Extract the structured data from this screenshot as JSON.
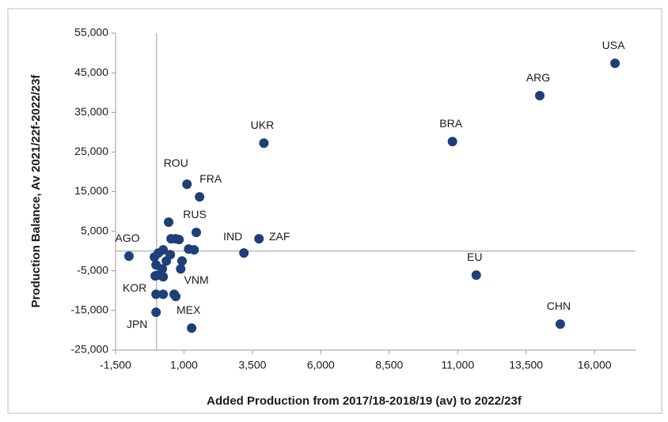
{
  "chart_data": {
    "type": "scatter",
    "x_label": "Added Production from 2017/18-2018/19 (av) to 2022/23f",
    "y_label": "Production Balance, Av 2021/22f-2022/23f",
    "xlim": [
      -1500,
      17500
    ],
    "ylim": [
      -25000,
      55000
    ],
    "xticks": [
      {
        "value": -1500,
        "label": "-1,500"
      },
      {
        "value": 1000,
        "label": "1,000"
      },
      {
        "value": 3500,
        "label": "3,500"
      },
      {
        "value": 6000,
        "label": "6,000"
      },
      {
        "value": 8500,
        "label": "8,500"
      },
      {
        "value": 11000,
        "label": "11,000"
      },
      {
        "value": 13500,
        "label": "13,500"
      },
      {
        "value": 16000,
        "label": "16,000"
      }
    ],
    "yticks": [
      {
        "value": 55000,
        "label": "55,000"
      },
      {
        "value": 45000,
        "label": "45,000"
      },
      {
        "value": 35000,
        "label": "35,000"
      },
      {
        "value": 25000,
        "label": "25,000"
      },
      {
        "value": 15000,
        "label": "15,000"
      },
      {
        "value": 5000,
        "label": "5,000"
      },
      {
        "value": -5000,
        "label": "-5,000"
      },
      {
        "value": -15000,
        "label": "-15,000"
      },
      {
        "value": -25000,
        "label": "-25,000"
      }
    ],
    "color": "#1f3f7a",
    "labels": [
      "USA",
      "ARG",
      "BRA",
      "UKR",
      "EU",
      "CHN",
      "ROU",
      "FRA",
      "RUS",
      "IND",
      "ZAF",
      "AGO",
      "KOR",
      "VNM",
      "JPN",
      "MEX",
      null,
      null,
      null,
      null,
      null,
      null,
      null,
      null,
      null,
      null,
      null,
      null,
      null,
      null,
      null,
      null,
      null,
      null,
      null,
      null
    ],
    "x": [
      16750,
      14000,
      10810,
      3920,
      11680,
      14750,
      1110,
      1570,
      1450,
      3190,
      3740,
      -1010,
      -50,
      700,
      -20,
      1280,
      440,
      530,
      700,
      240,
      65,
      -80,
      -20,
      210,
      35,
      240,
      820,
      1170,
      880,
      640,
      240,
      -20,
      355,
      500,
      930,
      1370
    ],
    "y": [
      47400,
      39230,
      27650,
      27250,
      -6080,
      -18450,
      16880,
      13680,
      4700,
      -490,
      3100,
      -1290,
      -6280,
      -11470,
      -15460,
      -19450,
      7300,
      3100,
      3100,
      300,
      -500,
      -1500,
      -3500,
      -4500,
      -6100,
      -6500,
      2900,
      500,
      -4500,
      -10900,
      -10900,
      -10900,
      -2500,
      -900,
      -2500,
      300
    ]
  }
}
